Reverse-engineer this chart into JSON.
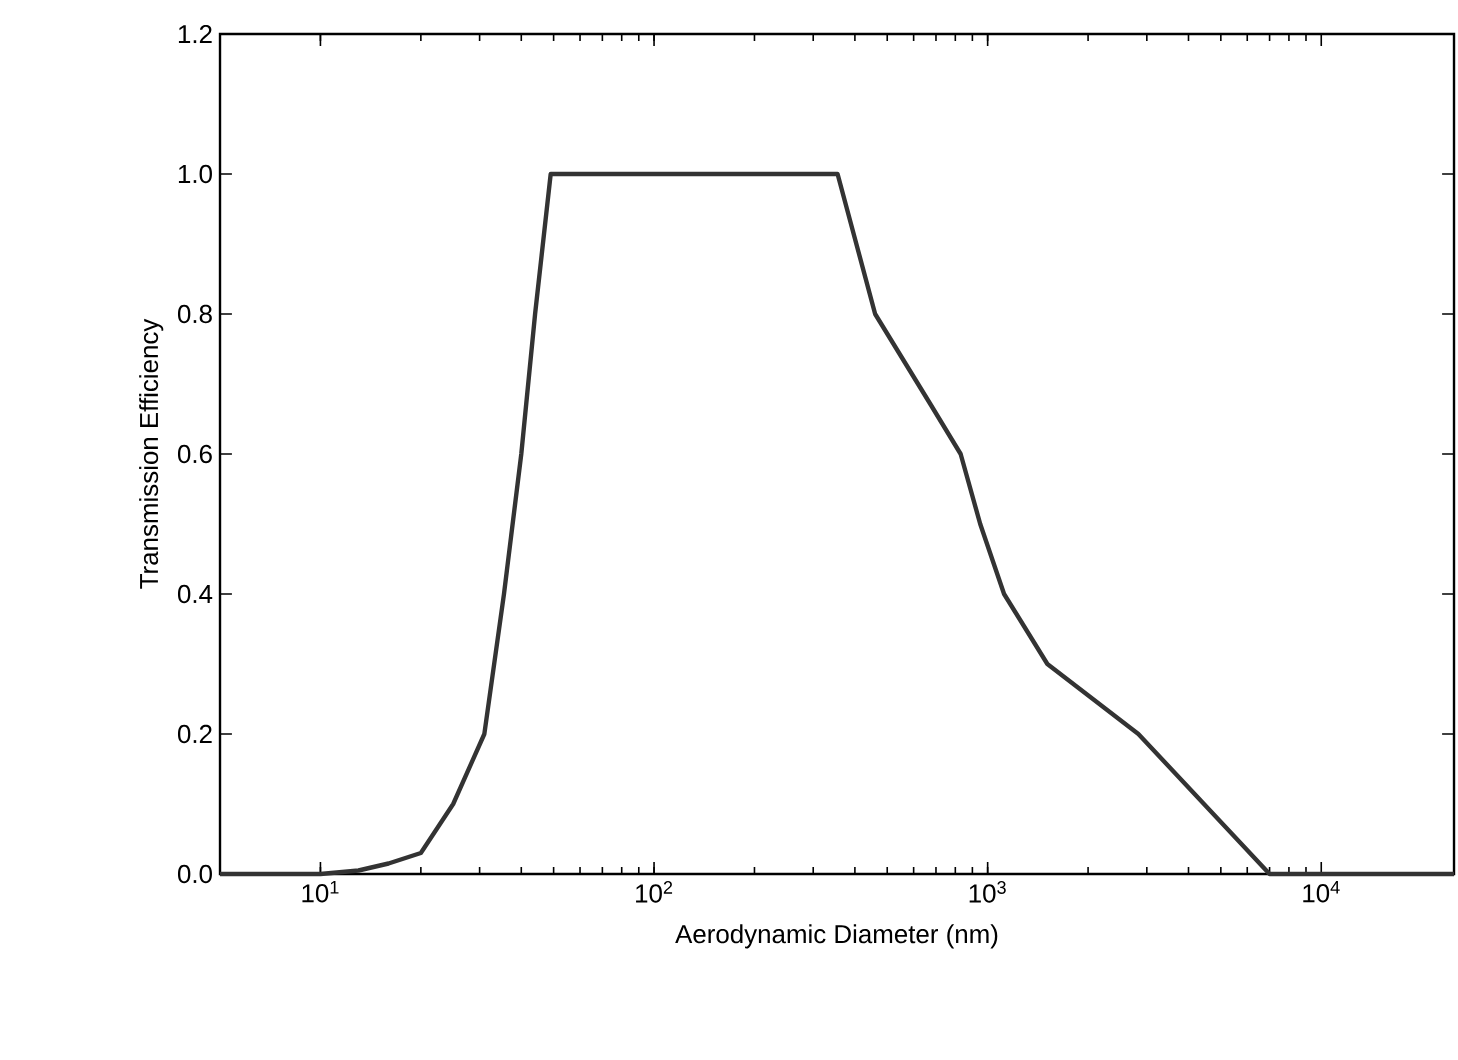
{
  "chart_data": {
    "type": "line",
    "xlabel": "Aerodynamic Diameter (nm)",
    "ylabel": "Transmission Efficiency",
    "log": "x",
    "xlim": [
      5,
      25000
    ],
    "ylim": [
      0,
      1.2
    ],
    "xticks": [
      {
        "value": 10,
        "label": "10$^{1}$"
      },
      {
        "value": 100,
        "label": "10$^{2}$"
      },
      {
        "value": 1000,
        "label": "10$^{3}$"
      },
      {
        "value": 10000,
        "label": "10$^{4}$"
      }
    ],
    "yticks": [
      {
        "value": 0,
        "label": "0.0"
      },
      {
        "value": 0.2,
        "label": "0.2"
      },
      {
        "value": 0.4,
        "label": "0.4"
      },
      {
        "value": 0.6,
        "label": "0.6"
      },
      {
        "value": 0.8,
        "label": "0.8"
      },
      {
        "value": 1.0,
        "label": "1.0"
      },
      {
        "value": 1.2,
        "label": "1.2"
      }
    ],
    "series": [
      {
        "color": "#333333",
        "x": [
          5,
          10,
          13,
          16,
          20,
          25,
          31,
          35.5,
          40,
          44,
          49,
          200,
          355,
          460,
          676,
          830,
          950,
          1120,
          1510,
          2830,
          7000,
          25000
        ],
        "values": [
          0,
          0,
          0.005,
          0.015,
          0.03,
          0.1,
          0.2,
          0.4,
          0.6,
          0.8,
          1.0,
          1.0,
          1.0,
          0.8,
          0.67,
          0.6,
          0.5,
          0.4,
          0.3,
          0.2,
          0,
          0
        ]
      }
    ]
  }
}
